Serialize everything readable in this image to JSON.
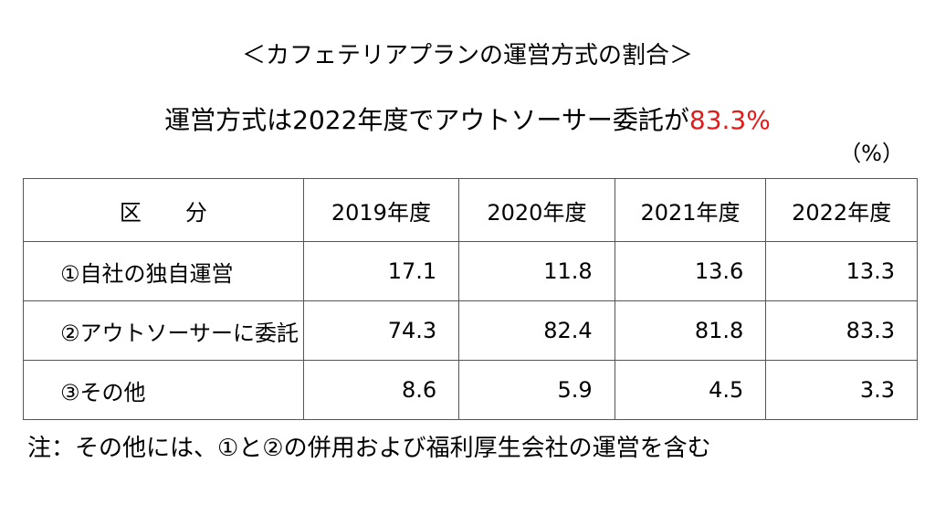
{
  "title": "＜カフェテリアプランの運営方式の割合＞",
  "subtitle": {
    "text": "運営方式は2022年度でアウトソーサー委託が",
    "highlight": "83.3%"
  },
  "unit": "（%）",
  "table": {
    "header": [
      "区　　分",
      "2019年度",
      "2020年度",
      "2021年度",
      "2022年度"
    ],
    "rows": [
      [
        "①自社の独自運営",
        17.1,
        11.8,
        13.6,
        13.3
      ],
      [
        "②アウトソーサーに委託",
        74.3,
        82.4,
        81.8,
        83.3
      ],
      [
        "③その他",
        8.6,
        5.9,
        4.5,
        3.3
      ]
    ]
  },
  "note": "注：その他には、①と②の併用および福利厚生会社の運営を含む"
}
